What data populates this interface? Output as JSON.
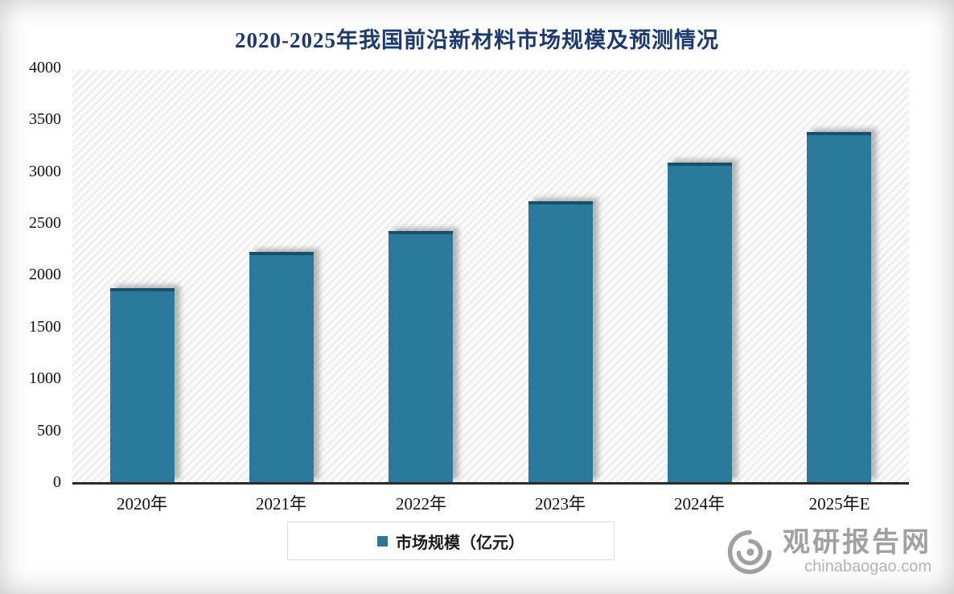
{
  "title": "2020-2025年我国前沿新材料市场规模及预测情况",
  "chart_data": {
    "type": "bar",
    "title": "2020-2025年我国前沿新材料市场规模及预测情况",
    "categories": [
      "2020年",
      "2021年",
      "2022年",
      "2023年",
      "2024年",
      "2025年E"
    ],
    "values": [
      1870,
      2220,
      2420,
      2710,
      3080,
      3380
    ],
    "xlabel": "",
    "ylabel": "",
    "ylim": [
      0,
      4000
    ],
    "ytick_step": 500,
    "grid": false,
    "background_hatch": true,
    "legend": [
      "市场规模（亿元）"
    ],
    "legend_position": "bottom",
    "bar_color": "#2b7a9c"
  },
  "legend": {
    "label": "市场规模（亿元）"
  },
  "watermark": {
    "name": "观研报告网",
    "domain": "chinabaogao.com"
  },
  "colors": {
    "bar": "#2b7a9c",
    "title": "#1d3a6e",
    "watermark": "#a0a0a0"
  }
}
